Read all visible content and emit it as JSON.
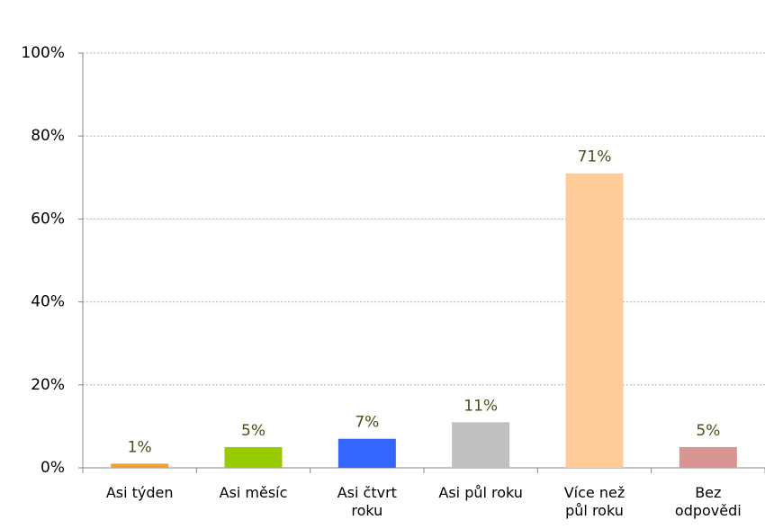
{
  "chart_data": {
    "type": "bar",
    "categories": [
      "Asi týden",
      "Asi měsíc",
      "Asi čtvrt\nroku",
      "Asi půl roku",
      "Více než\npůl roku",
      "Bez\nodpovědi"
    ],
    "values": [
      1,
      5,
      7,
      11,
      71,
      5
    ],
    "value_labels": [
      "1%",
      "5%",
      "7%",
      "11%",
      "71%",
      "5%"
    ],
    "colors": [
      "#f0a030",
      "#99cc00",
      "#3366ff",
      "#c0c0c0",
      "#ffcc99",
      "#d99594"
    ],
    "ylim": [
      0,
      100
    ],
    "yticks": [
      {
        "value": 0,
        "label": "0%"
      },
      {
        "value": 20,
        "label": "20%"
      },
      {
        "value": 40,
        "label": "40%"
      },
      {
        "value": 60,
        "label": "60%"
      },
      {
        "value": 80,
        "label": "80%"
      },
      {
        "value": 100,
        "label": "100%"
      }
    ],
    "grid": true
  }
}
